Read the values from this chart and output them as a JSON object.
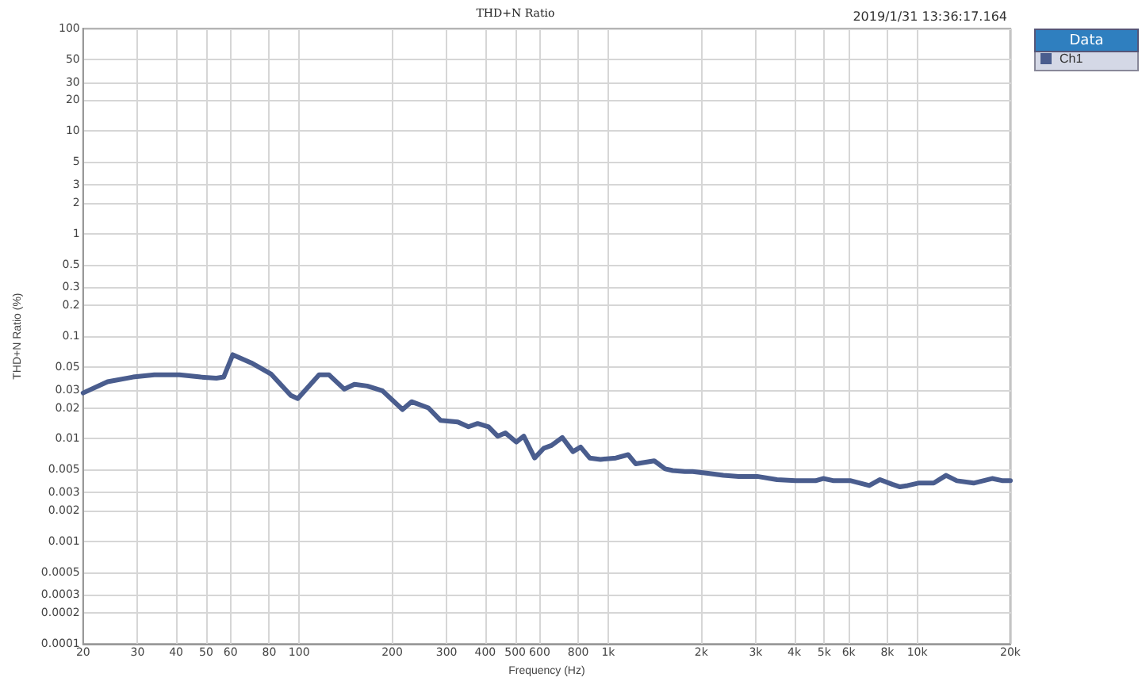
{
  "chart_data": {
    "type": "line",
    "title": "THD+N Ratio",
    "xlabel": "Frequency (Hz)",
    "ylabel": "THD+N Ratio (%)",
    "legend_title": "Data",
    "annotations": [
      "2019/1/31 13:36:17.164"
    ],
    "log": "xy",
    "grid": true,
    "legend": "top right",
    "marker": "none",
    "line_style": "solid",
    "xlim": [
      20,
      20000
    ],
    "ylim": [
      0.0001,
      100
    ],
    "xticks": [
      20,
      30,
      40,
      50,
      60,
      80,
      100,
      200,
      300,
      400,
      500,
      600,
      800,
      {
        "value": 1000,
        "label": "1k"
      },
      {
        "value": 2000,
        "label": "2k"
      },
      {
        "value": 3000,
        "label": "3k"
      },
      {
        "value": 4000,
        "label": "4k"
      },
      {
        "value": 5000,
        "label": "5k"
      },
      {
        "value": 6000,
        "label": "6k"
      },
      {
        "value": 8000,
        "label": "8k"
      },
      {
        "value": 10000,
        "label": "10k"
      },
      {
        "value": 20000,
        "label": "20k"
      }
    ],
    "yticks": [
      0.0001,
      0.0002,
      0.0003,
      0.0005,
      0.001,
      0.002,
      0.003,
      0.005,
      0.01,
      0.02,
      0.03,
      0.05,
      0.1,
      0.2,
      0.3,
      0.5,
      1,
      2,
      3,
      5,
      10,
      20,
      30,
      50,
      100
    ],
    "series": [
      {
        "name": "Ch1",
        "color": "#4a5d8e",
        "x": [
          20,
          24,
          29,
          34,
          41,
          48,
          54,
          57,
          61,
          70,
          81,
          94,
          99,
          116,
          125,
          140,
          151,
          166,
          186,
          216,
          231,
          262,
          287,
          326,
          353,
          378,
          410,
          439,
          465,
          504,
          533,
          578,
          619,
          655,
          710,
          769,
          814,
          871,
          944,
          1059,
          1160,
          1228,
          1409,
          1528,
          1617,
          1770,
          1876,
          2104,
          2358,
          2644,
          3034,
          3516,
          4036,
          4685,
          4958,
          5370,
          6095,
          6992,
          7575,
          8300,
          8790,
          9311,
          10080,
          11300,
          12390,
          13420,
          15210,
          17460,
          18910,
          20000
        ],
        "values": [
          0.028,
          0.036,
          0.04,
          0.042,
          0.042,
          0.04,
          0.039,
          0.04,
          0.066,
          0.055,
          0.043,
          0.0265,
          0.0247,
          0.042,
          0.042,
          0.0305,
          0.034,
          0.0327,
          0.0294,
          0.0193,
          0.023,
          0.02,
          0.0151,
          0.0146,
          0.0131,
          0.0141,
          0.0131,
          0.0106,
          0.0114,
          0.0093,
          0.0106,
          0.0065,
          0.0081,
          0.0086,
          0.0103,
          0.0075,
          0.0083,
          0.0065,
          0.0063,
          0.0065,
          0.007,
          0.0057,
          0.0061,
          0.0051,
          0.0049,
          0.0048,
          0.0048,
          0.0046,
          0.0044,
          0.0043,
          0.0043,
          0.004,
          0.0039,
          0.0039,
          0.0041,
          0.0039,
          0.0039,
          0.0035,
          0.004,
          0.0036,
          0.0034,
          0.0035,
          0.0037,
          0.0037,
          0.0044,
          0.0039,
          0.0037,
          0.0041,
          0.0039,
          0.0039
        ]
      }
    ]
  }
}
